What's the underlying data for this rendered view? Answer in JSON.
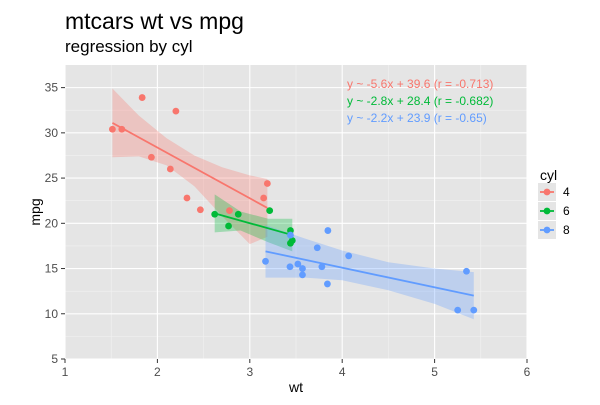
{
  "chart_data": {
    "type": "scatter",
    "title": "mtcars wt vs mpg",
    "subtitle": "regression by cyl",
    "xlabel": "wt",
    "ylabel": "mpg",
    "xlim": [
      1,
      6
    ],
    "ylim": [
      5,
      37.5
    ],
    "x_ticks": [
      1,
      2,
      3,
      4,
      5,
      6
    ],
    "y_ticks": [
      5,
      10,
      15,
      20,
      25,
      30,
      35
    ],
    "grid": true,
    "background": "#e5e5e5",
    "legend": {
      "title": "cyl",
      "position": "right"
    },
    "series": [
      {
        "name": "4",
        "color": "#f8766d",
        "annotation": "y ~ -5.6x + 39.6 (r = -0.713)",
        "fit": {
          "x": [
            1.513,
            3.19
          ],
          "y": [
            31.1,
            21.7
          ]
        },
        "band": {
          "x": [
            1.513,
            1.8,
            2.1,
            2.4,
            2.7,
            3.0,
            3.19
          ],
          "upper": [
            34.9,
            31.9,
            29.4,
            27.5,
            26.2,
            25.3,
            24.9
          ],
          "lower": [
            27.3,
            27.4,
            26.4,
            24.1,
            20.8,
            17.7,
            18.5
          ]
        },
        "points": [
          {
            "x": 1.513,
            "y": 30.4
          },
          {
            "x": 1.615,
            "y": 30.4
          },
          {
            "x": 1.835,
            "y": 33.9
          },
          {
            "x": 1.935,
            "y": 27.3
          },
          {
            "x": 2.14,
            "y": 26.0
          },
          {
            "x": 2.2,
            "y": 32.4
          },
          {
            "x": 2.32,
            "y": 22.8
          },
          {
            "x": 2.465,
            "y": 21.5
          },
          {
            "x": 2.78,
            "y": 21.4
          },
          {
            "x": 3.15,
            "y": 22.8
          },
          {
            "x": 3.19,
            "y": 24.4
          }
        ]
      },
      {
        "name": "6",
        "color": "#00ba38",
        "annotation": "y ~ -2.8x + 28.4 (r = -0.682)",
        "fit": {
          "x": [
            2.62,
            3.46
          ],
          "y": [
            21.1,
            18.7
          ]
        },
        "band": {
          "x": [
            2.62,
            2.9,
            3.2,
            3.46
          ],
          "upper": [
            23.2,
            21.3,
            20.5,
            20.5
          ],
          "lower": [
            19.0,
            19.2,
            17.9,
            16.9
          ]
        },
        "points": [
          {
            "x": 2.62,
            "y": 21.0
          },
          {
            "x": 2.77,
            "y": 19.7
          },
          {
            "x": 2.875,
            "y": 21.0
          },
          {
            "x": 3.215,
            "y": 21.4
          },
          {
            "x": 3.44,
            "y": 17.8
          },
          {
            "x": 3.44,
            "y": 19.2
          },
          {
            "x": 3.46,
            "y": 18.1
          }
        ]
      },
      {
        "name": "8",
        "color": "#619cff",
        "annotation": "y ~ -2.2x + 23.9 (r = -0.65)",
        "fit": {
          "x": [
            3.17,
            5.424
          ],
          "y": [
            16.9,
            12.0
          ]
        },
        "band": {
          "x": [
            3.17,
            3.6,
            4.0,
            4.5,
            5.0,
            5.424
          ],
          "upper": [
            19.8,
            18.3,
            17.0,
            15.7,
            15.0,
            14.6
          ],
          "lower": [
            14.0,
            14.0,
            13.7,
            12.6,
            11.1,
            9.4
          ]
        },
        "points": [
          {
            "x": 3.17,
            "y": 15.8
          },
          {
            "x": 3.435,
            "y": 15.2
          },
          {
            "x": 3.44,
            "y": 18.7
          },
          {
            "x": 3.52,
            "y": 15.5
          },
          {
            "x": 3.57,
            "y": 14.3
          },
          {
            "x": 3.57,
            "y": 15.0
          },
          {
            "x": 3.73,
            "y": 17.3
          },
          {
            "x": 3.78,
            "y": 15.2
          },
          {
            "x": 3.84,
            "y": 13.3
          },
          {
            "x": 3.845,
            "y": 19.2
          },
          {
            "x": 4.07,
            "y": 16.4
          },
          {
            "x": 5.25,
            "y": 10.4
          },
          {
            "x": 5.345,
            "y": 14.7
          },
          {
            "x": 5.424,
            "y": 10.4
          }
        ]
      }
    ]
  }
}
